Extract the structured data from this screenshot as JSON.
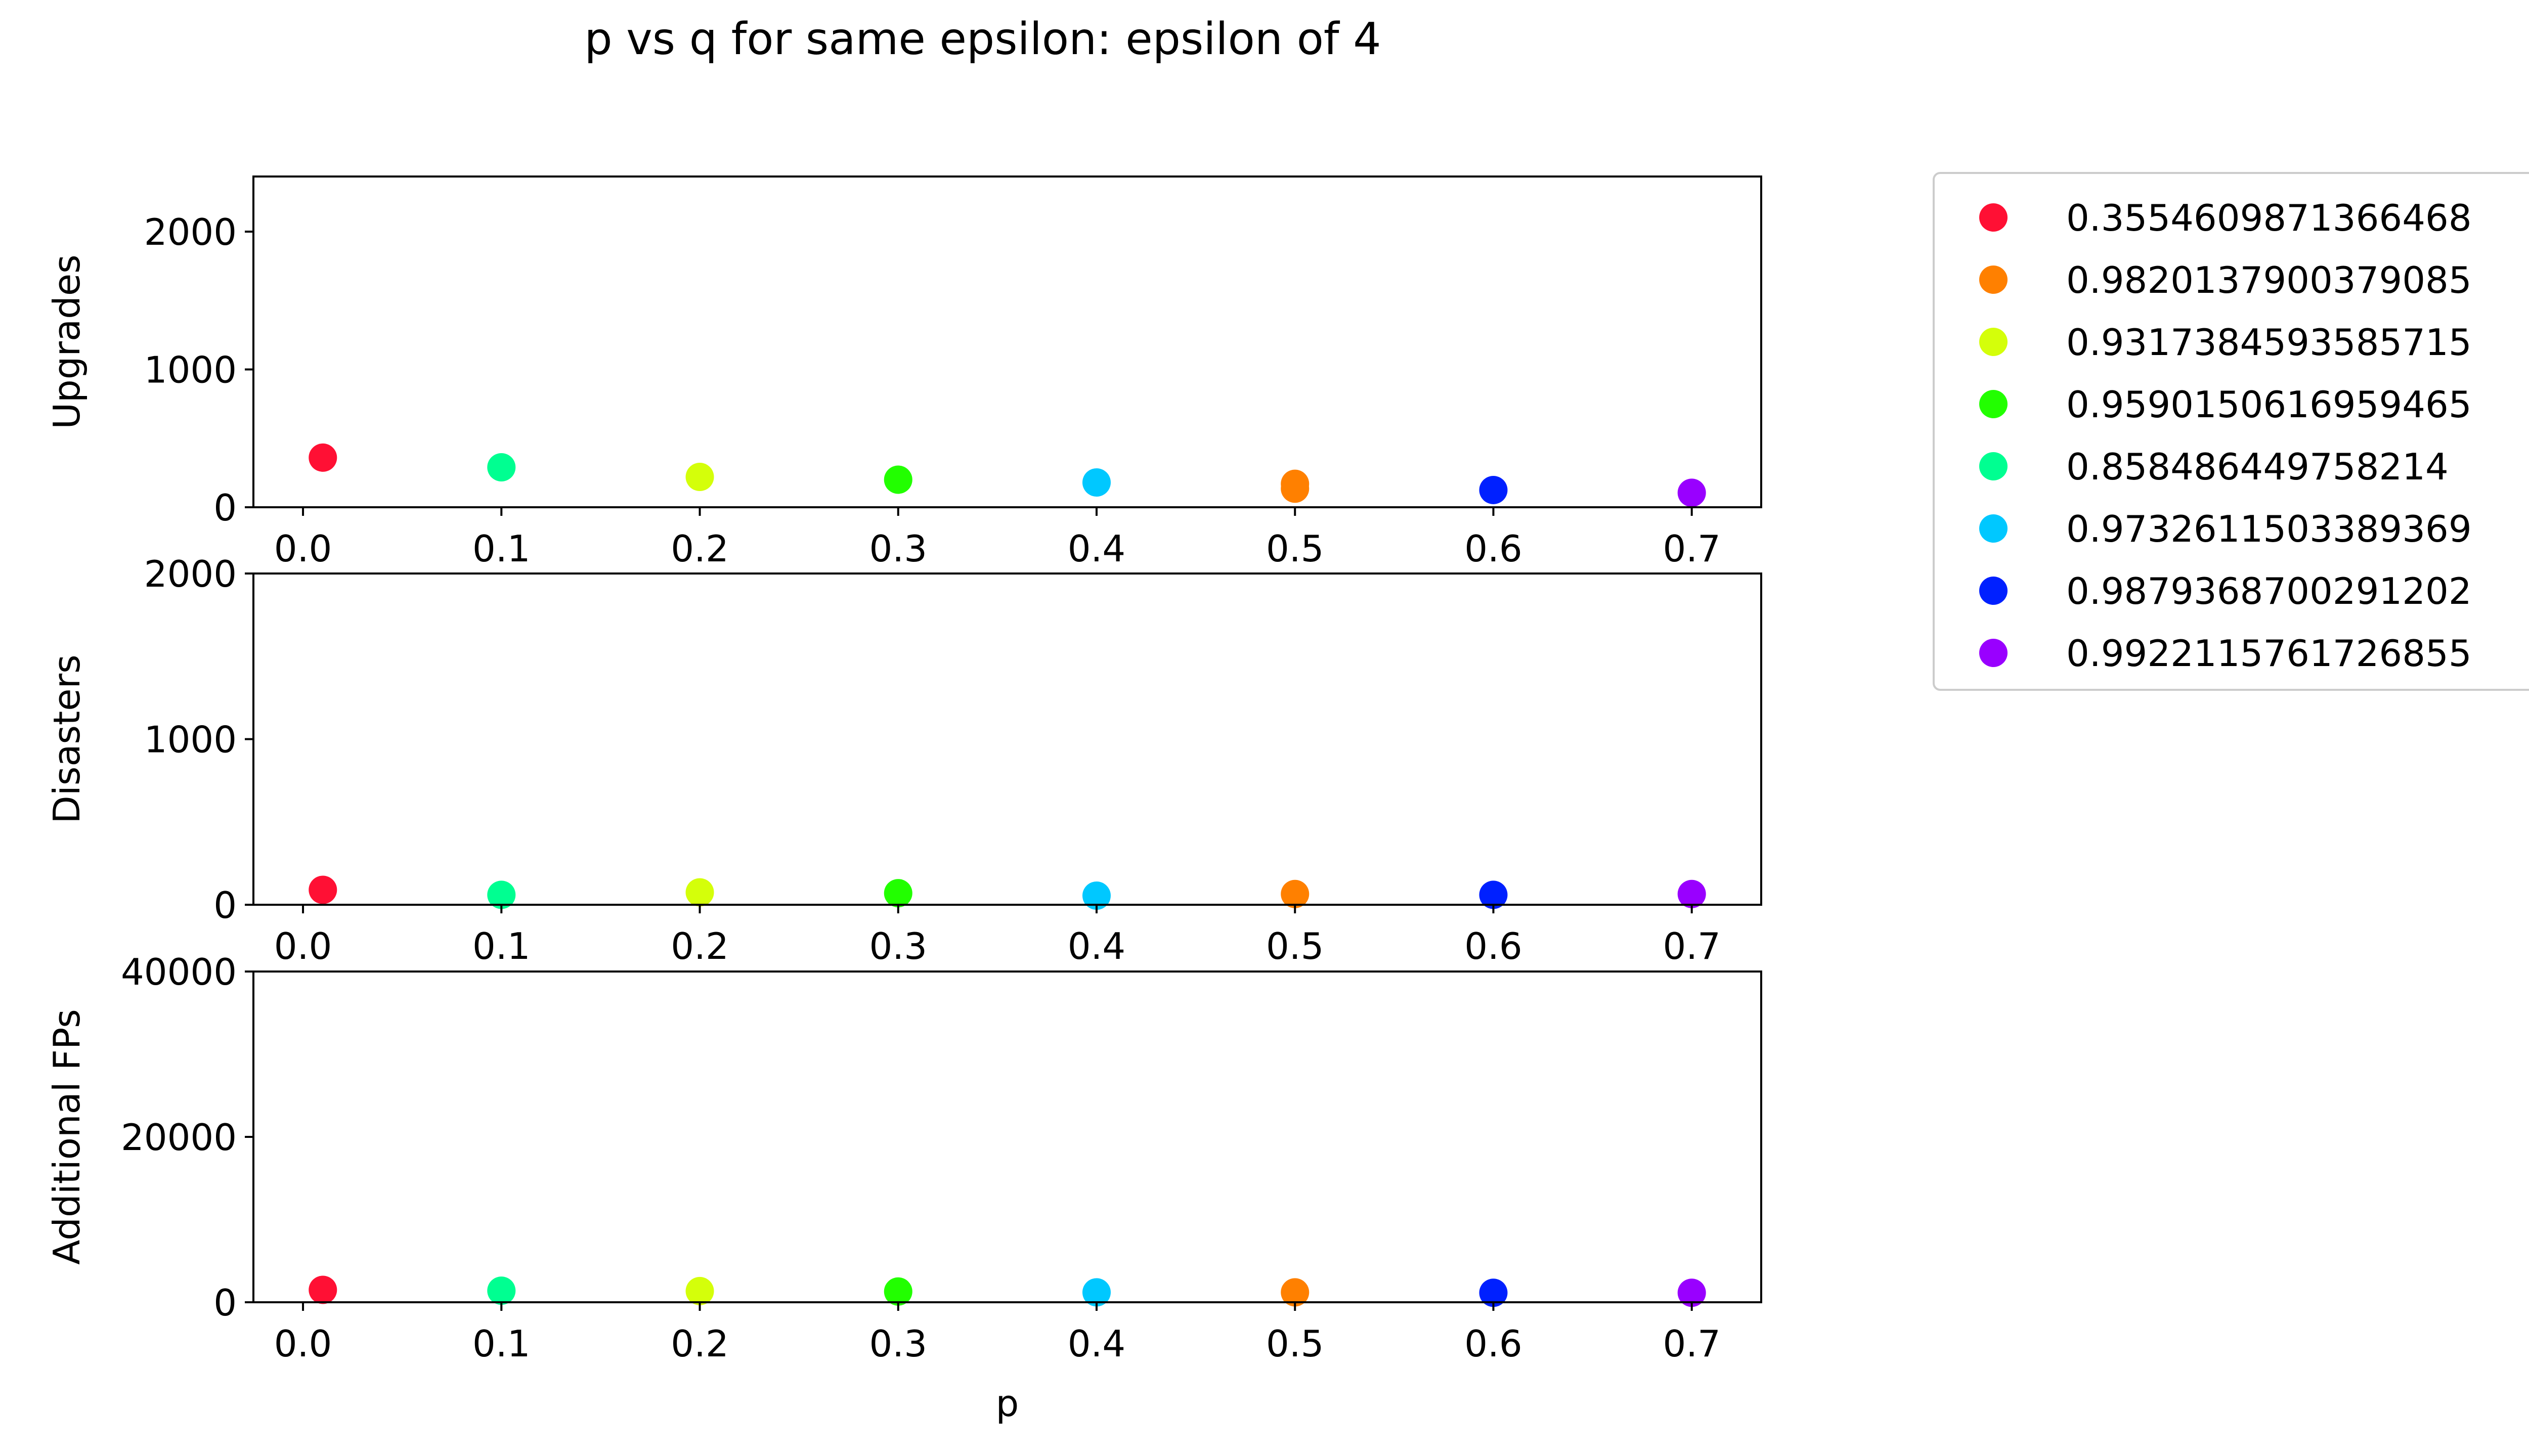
{
  "chart_data": {
    "type": "scatter",
    "title": "p vs q for same epsilon: epsilon of 4",
    "legend_placement": "outside-right",
    "grid": false,
    "series_colors": [
      "#ff1034",
      "#ff8000",
      "#d4ff0a",
      "#22ff00",
      "#00ff91",
      "#00c8ff",
      "#0020ff",
      "#9900ff"
    ],
    "legend": [
      {
        "label": "0.3554609871366468",
        "color": "#ff1034"
      },
      {
        "label": "0.9820137900379085",
        "color": "#ff8000"
      },
      {
        "label": "0.9317384593585715",
        "color": "#d4ff0a"
      },
      {
        "label": "0.9590150616959465",
        "color": "#22ff00"
      },
      {
        "label": "0.858486449758214",
        "color": "#00ff91"
      },
      {
        "label": "0.9732611503389369",
        "color": "#00c8ff"
      },
      {
        "label": "0.9879368700291202",
        "color": "#0020ff"
      },
      {
        "label": "0.9922115761726855",
        "color": "#9900ff"
      }
    ],
    "subplots": [
      {
        "ylabel": "Upgrades",
        "xlabel": "",
        "xlim": [
          -0.025,
          0.735
        ],
        "ylim": [
          0,
          2400
        ],
        "xticks": [
          "0.0",
          "0.1",
          "0.2",
          "0.3",
          "0.4",
          "0.5",
          "0.6",
          "0.7"
        ],
        "yticks": [
          "0",
          "1000",
          "2000"
        ],
        "points": [
          {
            "x": 0.01,
            "y": 360,
            "c": 0
          },
          {
            "x": 0.1,
            "y": 290,
            "c": 4
          },
          {
            "x": 0.2,
            "y": 220,
            "c": 2
          },
          {
            "x": 0.3,
            "y": 200,
            "c": 3
          },
          {
            "x": 0.4,
            "y": 180,
            "c": 5
          },
          {
            "x": 0.5,
            "y": 170,
            "c": 1
          },
          {
            "x": 0.5,
            "y": 135,
            "c": 1
          },
          {
            "x": 0.6,
            "y": 125,
            "c": 6
          },
          {
            "x": 0.7,
            "y": 105,
            "c": 7
          }
        ]
      },
      {
        "ylabel": "Disasters",
        "xlabel": "",
        "xlim": [
          -0.025,
          0.735
        ],
        "ylim": [
          0,
          2000
        ],
        "xticks": [
          "0.0",
          "0.1",
          "0.2",
          "0.3",
          "0.4",
          "0.5",
          "0.6",
          "0.7"
        ],
        "yticks": [
          "0",
          "1000",
          "2000"
        ],
        "points": [
          {
            "x": 0.01,
            "y": 90,
            "c": 0
          },
          {
            "x": 0.1,
            "y": 60,
            "c": 4
          },
          {
            "x": 0.2,
            "y": 75,
            "c": 2
          },
          {
            "x": 0.3,
            "y": 70,
            "c": 3
          },
          {
            "x": 0.4,
            "y": 55,
            "c": 5
          },
          {
            "x": 0.5,
            "y": 65,
            "c": 1
          },
          {
            "x": 0.6,
            "y": 60,
            "c": 6
          },
          {
            "x": 0.7,
            "y": 65,
            "c": 7
          }
        ]
      },
      {
        "ylabel": "Additional FPs",
        "xlabel": "p",
        "xlim": [
          -0.025,
          0.735
        ],
        "ylim": [
          0,
          40000
        ],
        "xticks": [
          "0.0",
          "0.1",
          "0.2",
          "0.3",
          "0.4",
          "0.5",
          "0.6",
          "0.7"
        ],
        "yticks": [
          "0",
          "20000",
          "40000"
        ],
        "points": [
          {
            "x": 0.01,
            "y": 1500,
            "c": 0
          },
          {
            "x": 0.1,
            "y": 1400,
            "c": 4
          },
          {
            "x": 0.2,
            "y": 1350,
            "c": 2
          },
          {
            "x": 0.3,
            "y": 1300,
            "c": 3
          },
          {
            "x": 0.4,
            "y": 1200,
            "c": 5
          },
          {
            "x": 0.5,
            "y": 1200,
            "c": 1
          },
          {
            "x": 0.6,
            "y": 1150,
            "c": 6
          },
          {
            "x": 0.7,
            "y": 1150,
            "c": 7
          }
        ]
      }
    ]
  }
}
